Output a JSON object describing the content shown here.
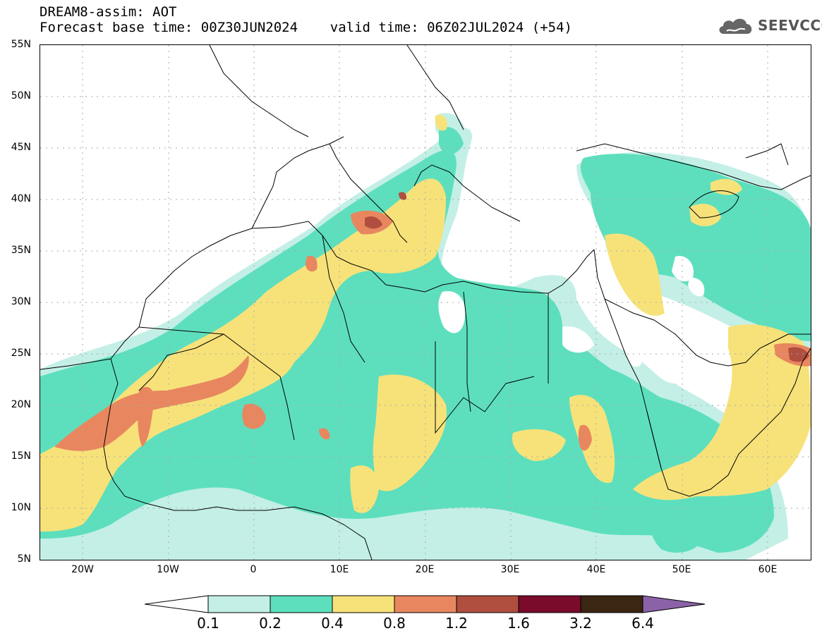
{
  "header": {
    "title": "DREAM8-assim: AOT",
    "subtitle": "Forecast base time: 00Z30JUN2024    valid time: 06Z02JUL2024 (+54)"
  },
  "logo": {
    "text": "SEEVCCC",
    "icon": "cloud-icon",
    "color": "#555555"
  },
  "map": {
    "lat_labels": [
      "55N",
      "50N",
      "45N",
      "40N",
      "35N",
      "30N",
      "25N",
      "20N",
      "15N",
      "10N",
      "5N"
    ],
    "lon_labels": [
      "20W",
      "10W",
      "0",
      "10E",
      "20E",
      "30E",
      "40E",
      "50E",
      "60E"
    ],
    "lon_range": [
      -25,
      65
    ],
    "lat_range": [
      5,
      55
    ]
  },
  "legend": {
    "labels": [
      "0.1",
      "0.2",
      "0.4",
      "0.8",
      "1.2",
      "1.6",
      "3.2",
      "6.4"
    ],
    "colors": [
      "#ffffff",
      "#c3efe6",
      "#5ddfbd",
      "#f7e27a",
      "#e8875f",
      "#b04e3f",
      "#7a0b2a",
      "#3b2513",
      "#8b62a8"
    ]
  }
}
